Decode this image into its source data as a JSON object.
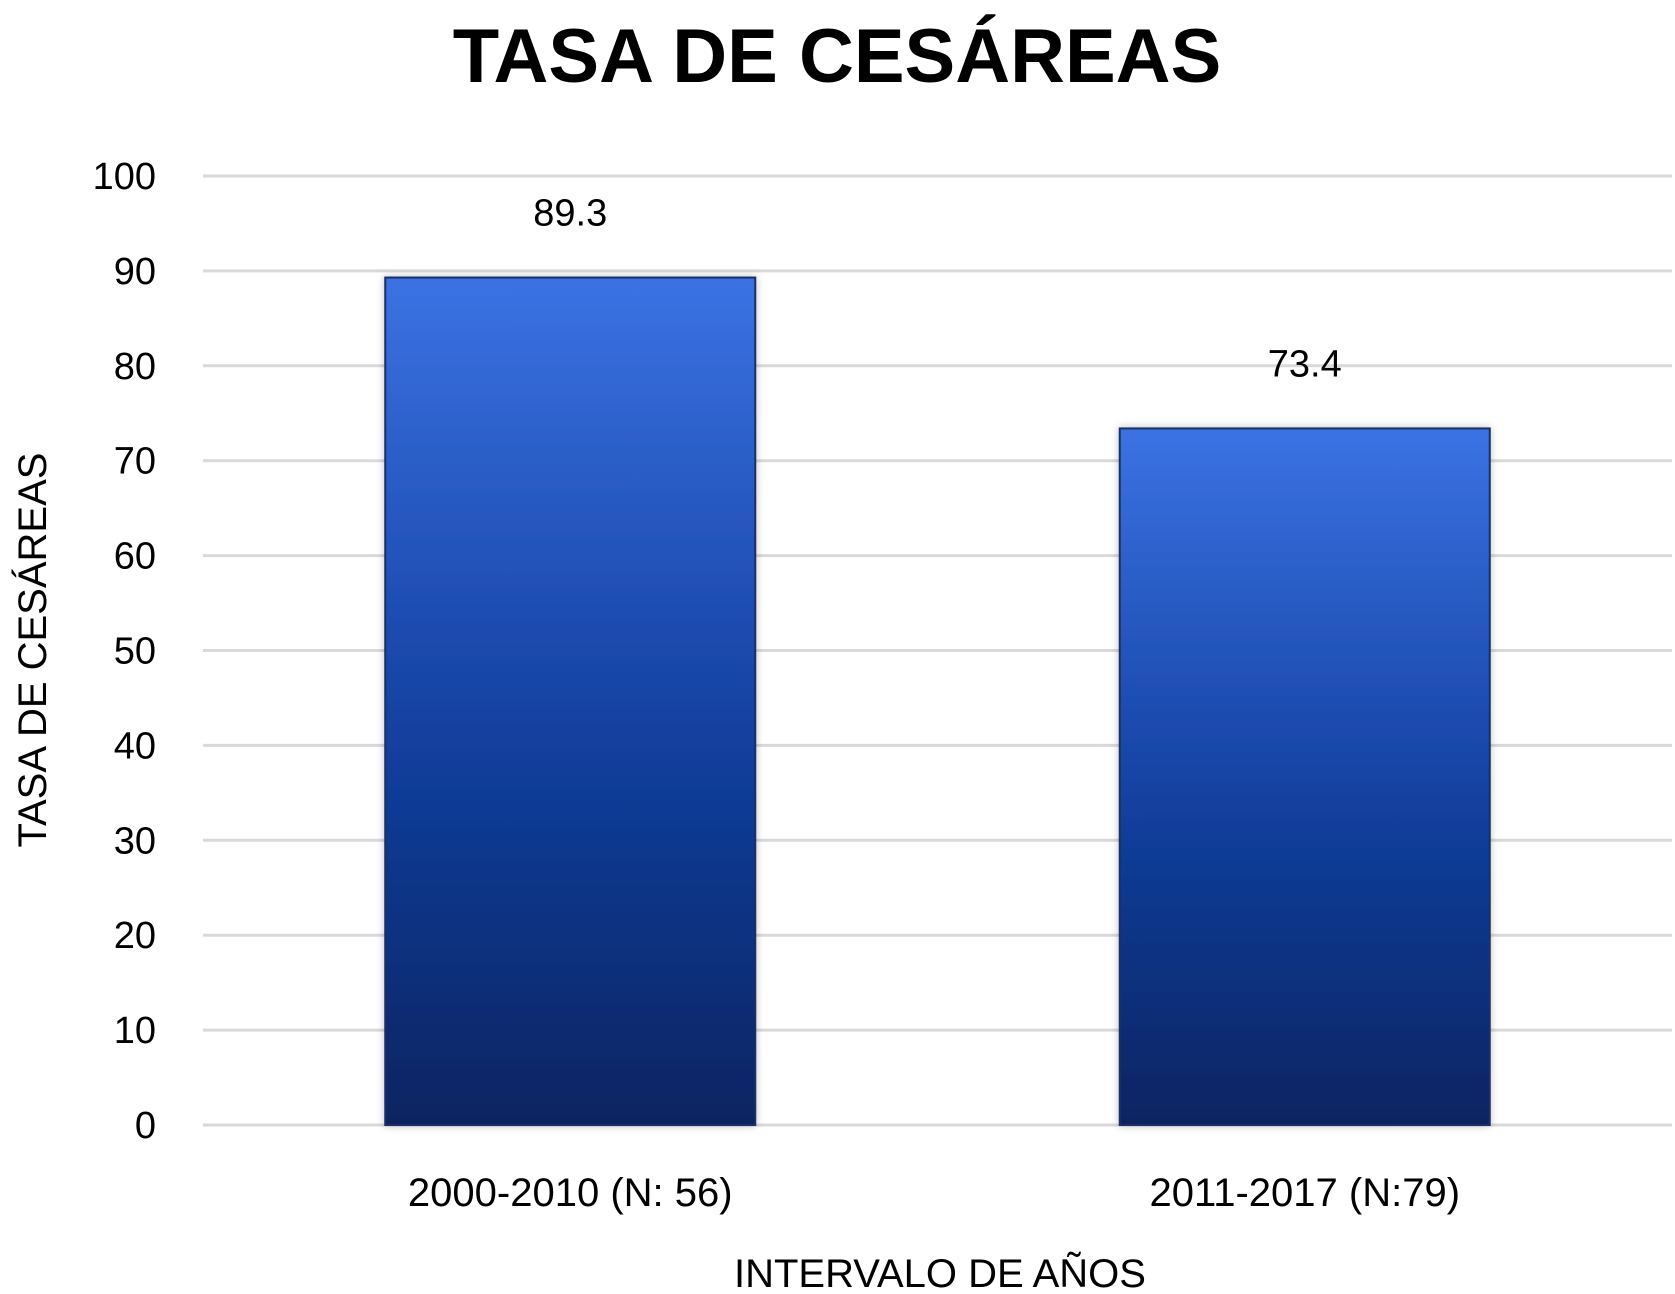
{
  "chart_data": {
    "type": "bar",
    "title": "TASA DE CESÁREAS",
    "xlabel": "INTERVALO DE AÑOS",
    "ylabel": "TASA DE CESÁREAS",
    "categories": [
      "2000-2010 (N: 56)",
      "2011-2017 (N:79)"
    ],
    "values": [
      89.3,
      73.4
    ],
    "data_labels": [
      "89.3",
      "73.4"
    ],
    "ylim": [
      0,
      100
    ],
    "yticks": [
      0,
      10,
      20,
      30,
      40,
      50,
      60,
      70,
      80,
      90,
      100
    ],
    "grid": true,
    "legend": "none",
    "colors": {
      "bar_top": "#3b72e3",
      "bar_bottom": "#0a2461",
      "gridline": "#d9d9d9"
    }
  }
}
